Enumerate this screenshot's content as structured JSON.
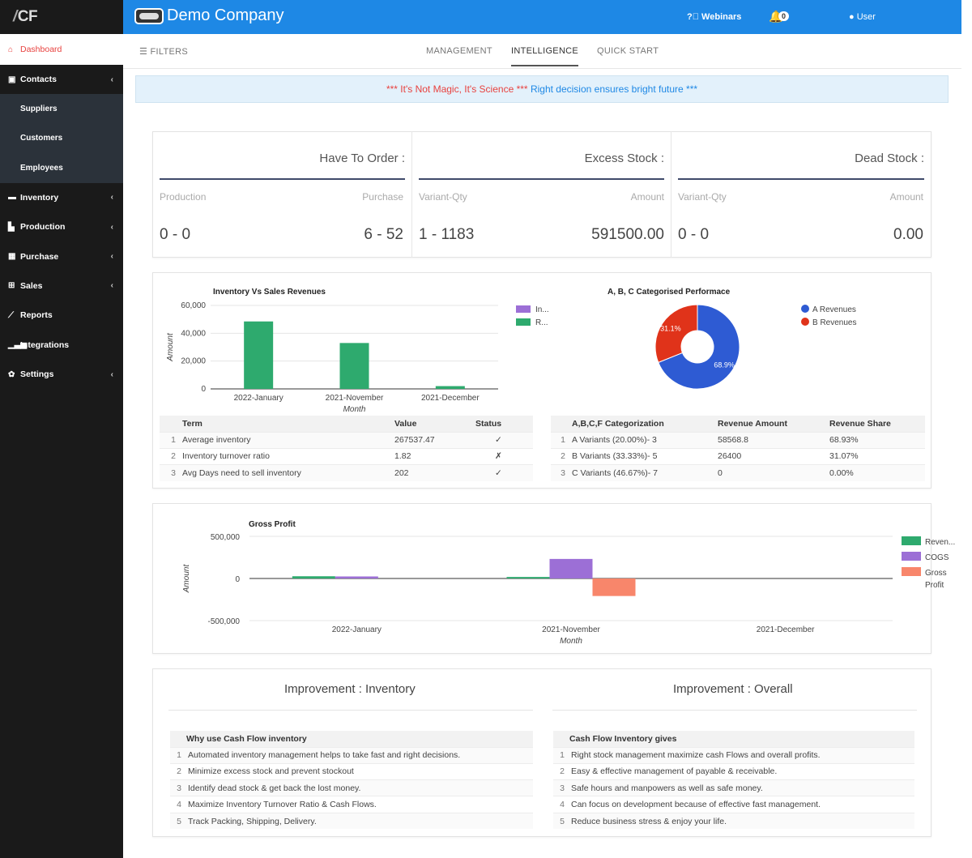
{
  "app": {
    "logo": "CF",
    "company": "Demo Company",
    "webinars": "Webinars",
    "notifications": "0",
    "user": "User"
  },
  "sidebar": {
    "items": [
      {
        "label": "Dashboard",
        "icon": "home-icon"
      },
      {
        "label": "Contacts",
        "icon": "contacts-icon"
      },
      {
        "label": "Suppliers"
      },
      {
        "label": "Customers"
      },
      {
        "label": "Employees"
      },
      {
        "label": "Inventory",
        "icon": "inventory-icon"
      },
      {
        "label": "Production",
        "icon": "production-icon"
      },
      {
        "label": "Purchase",
        "icon": "gift-icon"
      },
      {
        "label": "Sales",
        "icon": "cart-icon"
      },
      {
        "label": "Reports",
        "icon": "line-chart-icon"
      },
      {
        "label": "Integrations",
        "icon": "signal-icon"
      },
      {
        "label": "Settings",
        "icon": "gear-icon"
      }
    ]
  },
  "tabs": {
    "filters": "FILTERS",
    "items": [
      "MANAGEMENT",
      "INTELLIGENCE",
      "QUICK START"
    ],
    "active": "INTELLIGENCE"
  },
  "banner": {
    "red": "*** It's Not Magic, It's Science ***",
    "blue": "Right decision ensures bright future ***"
  },
  "stats": [
    {
      "title": "Have To Order :",
      "left_label": "Production",
      "right_label": "Purchase",
      "left_value": "0 - 0",
      "right_value": "6 - 52"
    },
    {
      "title": "Excess Stock :",
      "left_label": "Variant-Qty",
      "right_label": "Amount",
      "left_value": "1 - 1183",
      "right_value": "591500.00"
    },
    {
      "title": "Dead Stock :",
      "left_label": "Variant-Qty",
      "right_label": "Amount",
      "left_value": "0 - 0",
      "right_value": "0.00"
    }
  ],
  "chart_data": [
    {
      "type": "bar",
      "title": "Inventory Vs Sales Revenues",
      "xlabel": "Month",
      "ylabel": "Amount",
      "categories": [
        "2022-January",
        "2021-November",
        "2021-December"
      ],
      "series": [
        {
          "name": "In...",
          "values": [
            0,
            0,
            0
          ],
          "color": "#9c6fd6"
        },
        {
          "name": "R...",
          "values": [
            48500,
            33000,
            2000
          ],
          "color": "#2eaa6e"
        }
      ],
      "ylim": [
        0,
        60000
      ],
      "yticks": [
        "0",
        "20,000",
        "40,000",
        "60,000"
      ],
      "grid": true,
      "legend": "right"
    },
    {
      "type": "pie",
      "title": "A, B, C Categorised Performace",
      "labels": [
        "A Revenues",
        "B Revenues"
      ],
      "values": [
        68.93,
        31.07
      ],
      "slice_labels": [
        "68.9%",
        "31.1%"
      ],
      "colors": [
        "#2e5bd3",
        "#e0331a"
      ],
      "legend": "right"
    },
    {
      "type": "bar",
      "title": "Gross Profit",
      "xlabel": "Month",
      "ylabel": "Amount",
      "categories": [
        "2022-January",
        "2021-November",
        "2021-December"
      ],
      "series": [
        {
          "name": "Reven...",
          "values": [
            26400,
            18000,
            0
          ],
          "color": "#2eaa6e"
        },
        {
          "name": "COGS",
          "values": [
            24000,
            232000,
            0
          ],
          "color": "#9c6fd6"
        },
        {
          "name": "Gross Profit",
          "values": [
            0,
            -208000,
            0
          ],
          "color": "#f8866b"
        }
      ],
      "ylim": [
        -500000,
        500000
      ],
      "yticks": [
        "-500,000",
        "0",
        "500,000"
      ],
      "grid": true,
      "legend": "right"
    }
  ],
  "term_table": {
    "headers": [
      "Term",
      "Value",
      "Status"
    ],
    "rows": [
      {
        "n": "1",
        "term": "Average inventory",
        "value": "267537.47",
        "status": "✓"
      },
      {
        "n": "2",
        "term": "Inventory turnover ratio",
        "value": "1.82",
        "status": "✗"
      },
      {
        "n": "3",
        "term": "Avg Days need to sell inventory",
        "value": "202",
        "status": "✓"
      }
    ]
  },
  "abc_table": {
    "headers": [
      "A,B,C,F Categorization",
      "Revenue Amount",
      "Revenue Share"
    ],
    "rows": [
      {
        "n": "1",
        "cat": "A Variants (20.00%)- 3",
        "amount": "58568.8",
        "share": "68.93%"
      },
      {
        "n": "2",
        "cat": "B Variants (33.33%)- 5",
        "amount": "26400",
        "share": "31.07%"
      },
      {
        "n": "3",
        "cat": "C Variants (46.67%)- 7",
        "amount": "0",
        "share": "0.00%"
      }
    ]
  },
  "improvement": {
    "inventory_title": "Improvement : Inventory",
    "overall_title": "Improvement : Overall",
    "inventory_header": "Why use Cash Flow inventory",
    "inventory_items": [
      "Automated inventory management helps to take fast and right decisions.",
      "Minimize excess stock and prevent stockout",
      "Identify dead stock & get back the lost money.",
      "Maximize Inventory Turnover Ratio & Cash Flows.",
      "Track Packing, Shipping, Delivery."
    ],
    "overall_header": "Cash Flow Inventory gives",
    "overall_items": [
      "Right stock management maximize cash Flows and overall profits.",
      "Easy & effective management of payable & receivable.",
      "Safe hours and manpowers as well as safe money.",
      "Can focus on development because of effective fast management.",
      "Reduce business stress & enjoy your life."
    ]
  }
}
